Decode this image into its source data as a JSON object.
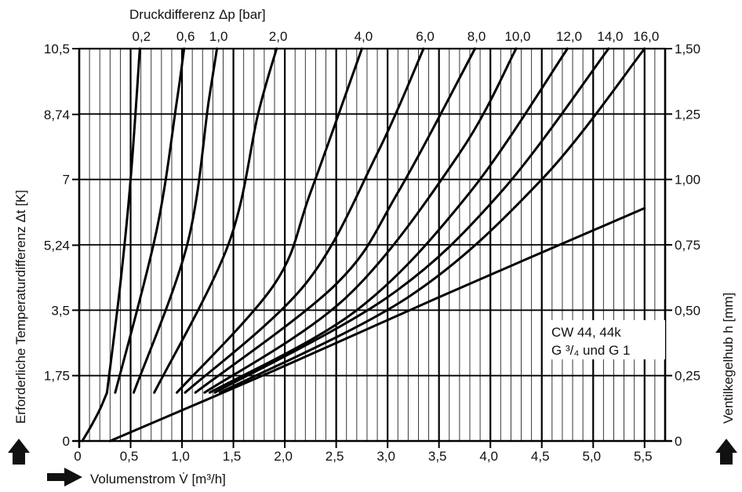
{
  "chart_data": {
    "type": "line",
    "x_axis": {
      "label": "Volumenstrom V̇  [m³/h]",
      "range": [
        0,
        5.7
      ],
      "ticks": [
        0,
        0.5,
        1.0,
        1.5,
        2.0,
        2.5,
        3.0,
        3.5,
        4.0,
        4.5,
        5.0,
        5.5
      ],
      "tick_labels": [
        "0",
        "0,5",
        "1,0",
        "1,5",
        "2,0",
        "2,5",
        "3,0",
        "3,5",
        "4,0",
        "4,5",
        "5,0",
        "5,5"
      ],
      "minor_step": 0.1,
      "major_step": 0.5
    },
    "y_left": {
      "label": "Erforderliche Temperaturdifferenz Δt [K]",
      "range": [
        0,
        10.5
      ],
      "ticks": [
        0,
        1.75,
        3.5,
        5.24,
        7,
        8.74,
        10.5
      ],
      "tick_labels": [
        "0",
        "1,75",
        "3,5",
        "5,24",
        "7",
        "8,74",
        "10,5"
      ]
    },
    "y_right": {
      "label": "Ventilkegelhub h [mm]",
      "range": [
        0,
        1.5
      ],
      "ticks": [
        0,
        0.25,
        0.5,
        0.75,
        1.0,
        1.25,
        1.5
      ],
      "tick_labels": [
        "0",
        "0,25",
        "0,50",
        "0,75",
        "1,00",
        "1,25",
        "1,50"
      ]
    },
    "top_axis": {
      "label": "Druckdifferenz Δp [bar]"
    },
    "grid": true,
    "legend_note": [
      "CW 44, 44k",
      "G ³/₄ und G 1"
    ],
    "series": [
      {
        "name": "0,2",
        "x": [
          0.27,
          0.4,
          0.5,
          0.59
        ],
        "y": [
          0.185,
          0.6,
          1.0,
          1.5
        ]
      },
      {
        "name": "0,6",
        "x": [
          0.35,
          0.75,
          0.95,
          1.02
        ],
        "y": [
          0.185,
          0.8,
          1.3,
          1.5
        ]
      },
      {
        "name": "1,0",
        "x": [
          0.53,
          1.05,
          1.26,
          1.34
        ],
        "y": [
          0.185,
          0.75,
          1.3,
          1.5
        ]
      },
      {
        "name": "2,0",
        "x": [
          0.73,
          1.45,
          1.74,
          1.92
        ],
        "y": [
          0.185,
          0.75,
          1.25,
          1.5
        ]
      },
      {
        "name": "4,0",
        "x": [
          0.95,
          1.9,
          2.25,
          2.75
        ],
        "y": [
          0.185,
          0.6,
          0.95,
          1.5
        ]
      },
      {
        "name": "6,0",
        "x": [
          1.03,
          2.2,
          2.9,
          3.35
        ],
        "y": [
          0.185,
          0.6,
          1.1,
          1.5
        ]
      },
      {
        "name": "8,0",
        "x": [
          1.13,
          2.5,
          3.1,
          3.85
        ],
        "y": [
          0.185,
          0.6,
          0.95,
          1.5
        ]
      },
      {
        "name": "10,0",
        "x": [
          1.22,
          2.6,
          3.7,
          4.25
        ],
        "y": [
          0.185,
          0.55,
          1.1,
          1.5
        ]
      },
      {
        "name": "12,0",
        "x": [
          1.27,
          2.7,
          3.8,
          4.75
        ],
        "y": [
          0.185,
          0.5,
          0.95,
          1.5
        ]
      },
      {
        "name": "14,0",
        "x": [
          1.32,
          3.0,
          4.1,
          5.15
        ],
        "y": [
          0.185,
          0.55,
          0.95,
          1.5
        ]
      },
      {
        "name": "16,0",
        "x": [
          1.37,
          3.2,
          4.5,
          5.5
        ],
        "y": [
          0.185,
          0.55,
          1.0,
          1.5
        ]
      },
      {
        "name": "",
        "x": [
          0.03,
          0.12,
          0.2,
          0.27
        ],
        "y": [
          0.0,
          0.06,
          0.12,
          0.185
        ]
      },
      {
        "name": "",
        "x": [
          0.3,
          1.9,
          3.5,
          5.5
        ],
        "y": [
          0.0,
          0.27,
          0.55,
          0.89
        ]
      }
    ]
  }
}
